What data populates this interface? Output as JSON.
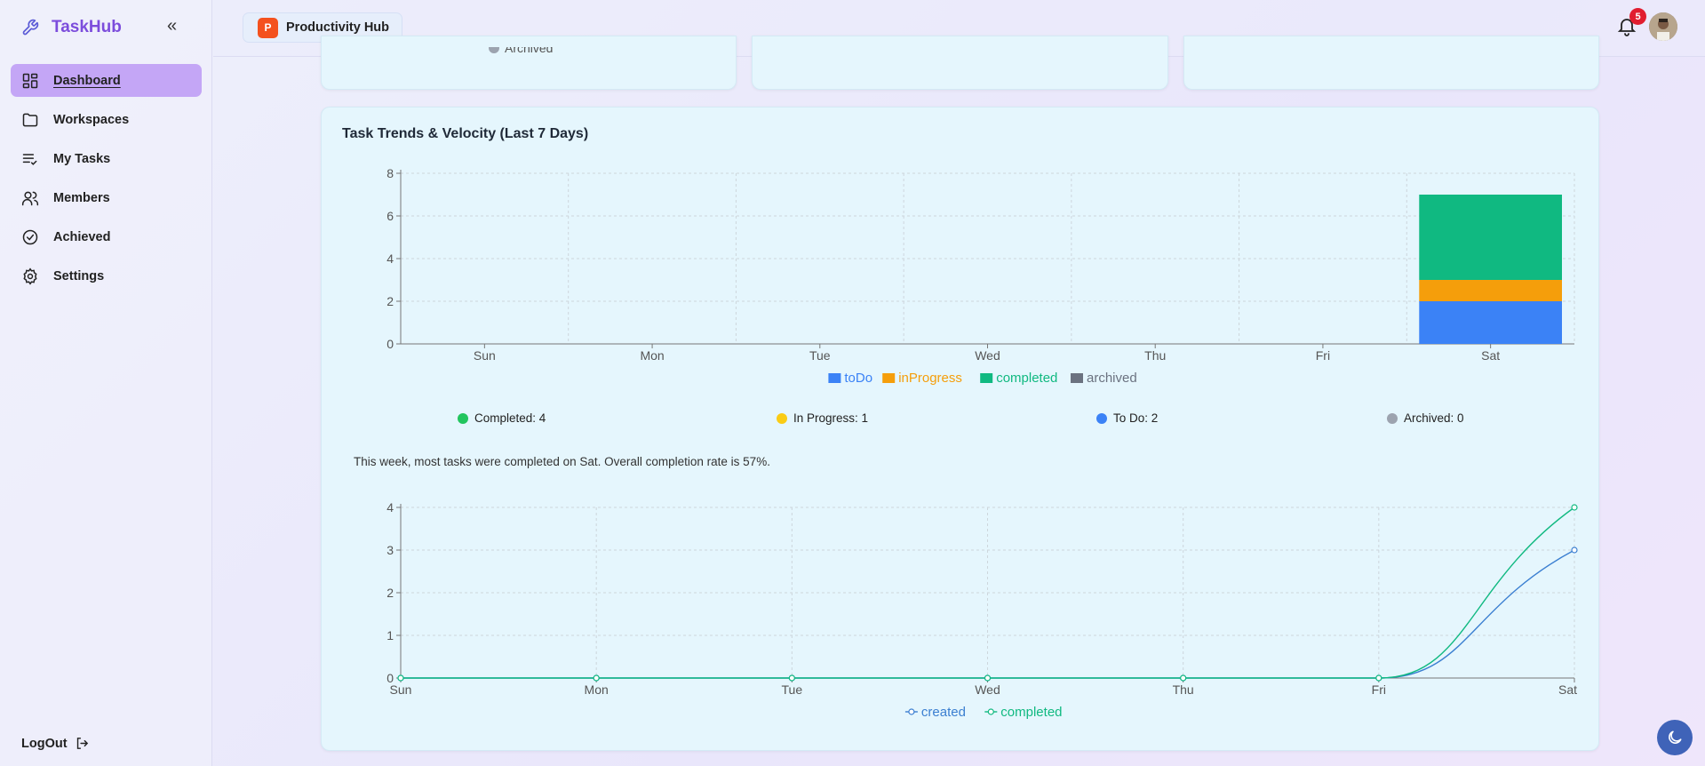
{
  "brand": {
    "name": "TaskHub"
  },
  "sidebar": {
    "items": [
      {
        "label": "Dashboard",
        "icon": "dashboard-icon",
        "active": true
      },
      {
        "label": "Workspaces",
        "icon": "folder-icon"
      },
      {
        "label": "My Tasks",
        "icon": "task-list-icon"
      },
      {
        "label": "Members",
        "icon": "users-icon"
      },
      {
        "label": "Achieved",
        "icon": "check-circle-icon"
      },
      {
        "label": "Settings",
        "icon": "gear-icon"
      }
    ],
    "logout_label": "LogOut"
  },
  "header": {
    "workspace_initial": "P",
    "workspace_name": "Productivity Hub",
    "notification_count": "5"
  },
  "top_cards": {
    "archived_label": "Archived"
  },
  "trends": {
    "title": "Task Trends & Velocity (Last 7 Days)",
    "stats": [
      {
        "label": "Completed: 4",
        "color": "#22c55e"
      },
      {
        "label": "In Progress: 1",
        "color": "#facc15"
      },
      {
        "label": "To Do: 2",
        "color": "#3b82f6"
      },
      {
        "label": "Archived: 0",
        "color": "#9ca3af"
      }
    ],
    "insight": "This week, most tasks were completed on Sat. Overall completion rate is 57%."
  },
  "chart_data": [
    {
      "type": "bar",
      "stacked": true,
      "categories": [
        "Sun",
        "Mon",
        "Tue",
        "Wed",
        "Thu",
        "Fri",
        "Sat"
      ],
      "series": [
        {
          "name": "toDo",
          "color": "#3b82f6",
          "values": [
            0,
            0,
            0,
            0,
            0,
            0,
            2
          ]
        },
        {
          "name": "inProgress",
          "color": "#f59e0b",
          "values": [
            0,
            0,
            0,
            0,
            0,
            0,
            1
          ]
        },
        {
          "name": "completed",
          "color": "#10b981",
          "values": [
            0,
            0,
            0,
            0,
            0,
            0,
            4
          ]
        },
        {
          "name": "archived",
          "color": "#6b7280",
          "values": [
            0,
            0,
            0,
            0,
            0,
            0,
            0
          ]
        }
      ],
      "yticks": [
        0,
        2,
        4,
        6,
        8
      ],
      "ylim": [
        0,
        8
      ],
      "grid": true,
      "legend": "bottom"
    },
    {
      "type": "line",
      "categories": [
        "Sun",
        "Mon",
        "Tue",
        "Wed",
        "Thu",
        "Fri",
        "Sat"
      ],
      "series": [
        {
          "name": "created",
          "color": "#3b7fd1",
          "values": [
            0,
            0,
            0,
            0,
            0,
            0,
            3
          ]
        },
        {
          "name": "completed",
          "color": "#10b981",
          "values": [
            0,
            0,
            0,
            0,
            0,
            0,
            4
          ]
        }
      ],
      "yticks": [
        0,
        1,
        2,
        3,
        4
      ],
      "ylim": [
        0,
        4
      ],
      "grid": true,
      "legend": "bottom"
    }
  ]
}
